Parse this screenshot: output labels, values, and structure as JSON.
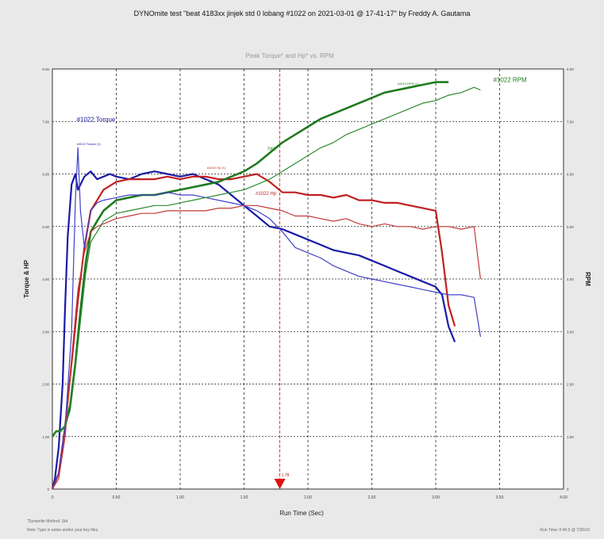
{
  "title": "DYNOmite test \"beat 4183xx jinjek std 0 lobang #1022 on 2021-03-01 @ 17-41-17\" by Freddy A. Gautama",
  "footer": {
    "left_line1": "\"Dynamite Method: Std",
    "left_line2": "Note: Type in notes and/or your key files",
    "right": "Run Time: 0:40.0 @ 7/26/16"
  },
  "chart_data": {
    "type": "line",
    "title": "Peak Torque* and Hp* vs. RPM",
    "xlabel": "Run Time (Sec)",
    "ylabel": "Torque & HP",
    "y2label": "RPM",
    "xlim": [
      0,
      4
    ],
    "ylim": [
      0,
      8
    ],
    "y2lim": [
      0,
      8
    ],
    "x_ticks": [
      "0",
      "0.50",
      "1.00",
      "1.50",
      "2.00",
      "2.50",
      "3.00",
      "3.50",
      "4.00"
    ],
    "y_ticks": [
      "0",
      "1.00",
      "2.00",
      "3.00",
      "4.00",
      "5.00",
      "6.00",
      "7.00",
      "8.00"
    ],
    "y2_ticks": [
      "0",
      "1.00",
      "2.00",
      "3.00",
      "4.00",
      "5.00",
      "6.00",
      "7.00",
      "8.00"
    ],
    "grid": true,
    "cursor": {
      "x": 1.78,
      "label": "1.78"
    },
    "annotations": [
      {
        "text": "#1022 Torque",
        "x": 0.19,
        "y": 7.0,
        "color": "#1a1aa8",
        "size": 8
      },
      {
        "text": "#4010 Torque (1)",
        "x": 0.19,
        "y": 6.55,
        "color": "#1a1aa8",
        "size": 4
      },
      {
        "text": "#4010 Hp (1)",
        "x": 1.21,
        "y": 6.1,
        "color": "#c02020",
        "size": 4
      },
      {
        "text": "#1022 Hp",
        "x": 1.59,
        "y": 5.6,
        "color": "#c02020",
        "size": 6
      },
      {
        "text": "7062",
        "x": 1.68,
        "y": 6.45,
        "color": "#1e7a1e",
        "size": 5
      },
      {
        "text": "#4010 RPM (1)",
        "x": 2.7,
        "y": 7.7,
        "color": "#1e7a1e",
        "size": 4
      },
      {
        "text": "#1022 RPM",
        "x": 3.45,
        "y": 7.75,
        "color": "#1e7a1e",
        "size": 8
      }
    ],
    "series": [
      {
        "color": "#1a1aa8",
        "width": 2.2,
        "x": [
          0.0,
          0.02,
          0.05,
          0.08,
          0.1,
          0.12,
          0.15,
          0.18,
          0.2,
          0.22,
          0.25,
          0.3,
          0.35,
          0.4,
          0.45,
          0.5,
          0.6,
          0.7,
          0.8,
          0.9,
          1.0,
          1.1,
          1.2,
          1.3,
          1.4,
          1.5,
          1.6,
          1.7,
          1.8,
          1.9,
          2.0,
          2.1,
          2.2,
          2.3,
          2.4,
          2.5,
          2.6,
          2.7,
          2.8,
          2.9,
          3.0,
          3.05,
          3.1,
          3.15
        ],
        "y": [
          0.0,
          0.2,
          0.8,
          2.0,
          3.5,
          4.8,
          5.8,
          6.0,
          5.7,
          5.8,
          5.95,
          6.05,
          5.9,
          5.95,
          6.0,
          5.95,
          5.9,
          6.0,
          6.05,
          6.0,
          5.95,
          6.0,
          5.9,
          5.8,
          5.6,
          5.4,
          5.2,
          5.0,
          4.95,
          4.85,
          4.75,
          4.65,
          4.55,
          4.5,
          4.45,
          4.35,
          4.25,
          4.15,
          4.05,
          3.95,
          3.85,
          3.7,
          3.1,
          2.8
        ]
      },
      {
        "color": "#c02020",
        "width": 2.2,
        "x": [
          0.0,
          0.05,
          0.1,
          0.15,
          0.2,
          0.25,
          0.3,
          0.4,
          0.5,
          0.6,
          0.7,
          0.8,
          0.9,
          1.0,
          1.1,
          1.2,
          1.3,
          1.4,
          1.5,
          1.6,
          1.7,
          1.8,
          1.9,
          2.0,
          2.1,
          2.2,
          2.3,
          2.4,
          2.5,
          2.6,
          2.7,
          2.8,
          2.9,
          3.0,
          3.05,
          3.1,
          3.15
        ],
        "y": [
          0.0,
          0.3,
          1.2,
          2.4,
          3.6,
          4.6,
          5.3,
          5.7,
          5.85,
          5.9,
          5.9,
          5.9,
          5.95,
          5.9,
          5.95,
          5.95,
          5.9,
          5.9,
          5.95,
          6.0,
          5.85,
          5.65,
          5.65,
          5.6,
          5.6,
          5.55,
          5.6,
          5.5,
          5.5,
          5.45,
          5.45,
          5.4,
          5.35,
          5.3,
          4.5,
          3.5,
          3.1
        ]
      },
      {
        "color": "#1e7a1e",
        "width": 2.6,
        "x": [
          0.0,
          0.03,
          0.06,
          0.1,
          0.14,
          0.18,
          0.22,
          0.26,
          0.3,
          0.35,
          0.4,
          0.5,
          0.6,
          0.7,
          0.8,
          0.9,
          1.0,
          1.1,
          1.2,
          1.3,
          1.4,
          1.5,
          1.6,
          1.7,
          1.8,
          1.9,
          2.0,
          2.1,
          2.2,
          2.3,
          2.4,
          2.5,
          2.6,
          2.7,
          2.8,
          2.9,
          3.0,
          3.1
        ],
        "y": [
          1.0,
          1.1,
          1.1,
          1.2,
          1.6,
          2.4,
          3.4,
          4.3,
          4.9,
          5.1,
          5.3,
          5.5,
          5.55,
          5.6,
          5.6,
          5.65,
          5.7,
          5.75,
          5.8,
          5.85,
          5.95,
          6.05,
          6.2,
          6.4,
          6.6,
          6.75,
          6.9,
          7.05,
          7.15,
          7.25,
          7.35,
          7.45,
          7.55,
          7.6,
          7.65,
          7.7,
          7.75,
          7.75
        ]
      },
      {
        "color": "#4040c8",
        "width": 1.2,
        "x": [
          0.0,
          0.05,
          0.1,
          0.15,
          0.18,
          0.2,
          0.22,
          0.25,
          0.3,
          0.35,
          0.4,
          0.5,
          0.6,
          0.7,
          0.8,
          0.9,
          1.0,
          1.1,
          1.2,
          1.3,
          1.4,
          1.5,
          1.6,
          1.7,
          1.8,
          1.9,
          2.0,
          2.1,
          2.2,
          2.3,
          2.4,
          2.5,
          2.6,
          2.7,
          2.8,
          2.9,
          3.0,
          3.1,
          3.2,
          3.3,
          3.35
        ],
        "y": [
          0.0,
          0.3,
          1.2,
          3.0,
          5.5,
          6.5,
          5.3,
          4.6,
          5.3,
          5.45,
          5.5,
          5.55,
          5.6,
          5.6,
          5.6,
          5.65,
          5.6,
          5.6,
          5.55,
          5.5,
          5.45,
          5.4,
          5.3,
          5.15,
          4.9,
          4.6,
          4.5,
          4.4,
          4.25,
          4.15,
          4.05,
          4.0,
          3.95,
          3.9,
          3.85,
          3.8,
          3.75,
          3.7,
          3.7,
          3.65,
          2.9
        ]
      },
      {
        "color": "#c03a3a",
        "width": 1.2,
        "x": [
          0.0,
          0.05,
          0.1,
          0.15,
          0.2,
          0.25,
          0.3,
          0.35,
          0.4,
          0.5,
          0.6,
          0.7,
          0.8,
          0.9,
          1.0,
          1.1,
          1.2,
          1.3,
          1.4,
          1.5,
          1.6,
          1.7,
          1.8,
          1.9,
          2.0,
          2.1,
          2.2,
          2.3,
          2.4,
          2.5,
          2.6,
          2.7,
          2.8,
          2.9,
          3.0,
          3.1,
          3.2,
          3.3,
          3.35
        ],
        "y": [
          0.0,
          0.2,
          1.0,
          2.5,
          3.8,
          4.5,
          4.9,
          5.0,
          5.05,
          5.15,
          5.2,
          5.25,
          5.25,
          5.3,
          5.3,
          5.3,
          5.3,
          5.35,
          5.35,
          5.4,
          5.4,
          5.35,
          5.3,
          5.2,
          5.2,
          5.15,
          5.1,
          5.15,
          5.05,
          5.0,
          5.05,
          5.0,
          5.0,
          4.95,
          5.0,
          5.0,
          4.95,
          5.0,
          4.0
        ]
      },
      {
        "color": "#2e8a2e",
        "width": 1.2,
        "x": [
          0.0,
          0.03,
          0.06,
          0.1,
          0.14,
          0.18,
          0.22,
          0.26,
          0.3,
          0.4,
          0.5,
          0.6,
          0.7,
          0.8,
          0.9,
          1.0,
          1.1,
          1.2,
          1.3,
          1.4,
          1.5,
          1.6,
          1.7,
          1.8,
          1.9,
          2.0,
          2.1,
          2.2,
          2.3,
          2.4,
          2.5,
          2.6,
          2.7,
          2.8,
          2.9,
          3.0,
          3.1,
          3.2,
          3.3,
          3.35
        ],
        "y": [
          1.0,
          1.1,
          1.1,
          1.2,
          1.5,
          2.3,
          3.2,
          4.1,
          4.7,
          5.1,
          5.25,
          5.3,
          5.35,
          5.4,
          5.4,
          5.45,
          5.5,
          5.55,
          5.6,
          5.65,
          5.7,
          5.8,
          5.9,
          6.05,
          6.2,
          6.35,
          6.5,
          6.6,
          6.75,
          6.85,
          6.95,
          7.05,
          7.15,
          7.25,
          7.35,
          7.4,
          7.5,
          7.55,
          7.65,
          7.6
        ]
      }
    ]
  }
}
